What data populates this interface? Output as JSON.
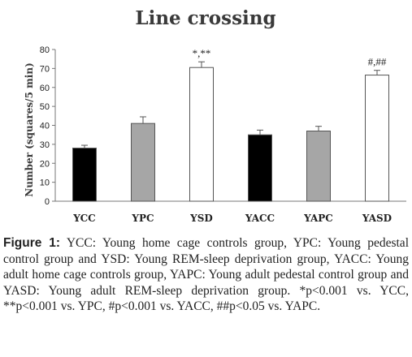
{
  "chart_data": {
    "type": "bar",
    "title": "Line crossing",
    "ylabel": "Number  (squares/5 min)",
    "xlabel": "",
    "ylim": [
      0,
      80
    ],
    "yticks": [
      0,
      10,
      20,
      30,
      40,
      50,
      60,
      70,
      80
    ],
    "categories": [
      "YCC",
      "YPC",
      "YSD",
      "YACC",
      "YAPC",
      "YASD"
    ],
    "values": [
      28,
      41,
      70.5,
      35,
      37,
      66.5
    ],
    "errors": [
      1.5,
      3.5,
      3,
      2.5,
      2.5,
      2.5
    ],
    "annotations": [
      "",
      "",
      "*,**",
      "",
      "",
      "#,##"
    ],
    "bar_colors": [
      "#000000",
      "#a6a6a6",
      "#ffffff",
      "#000000",
      "#a6a6a6",
      "#ffffff"
    ],
    "grid": false
  },
  "caption": {
    "label": "Figure 1:",
    "text": "YCC: Young home cage controls group, YPC: Young pedestal control group and YSD: Young REM-sleep deprivation group, YACC: Young adult home cage controls group, YAPC: Young adult pedestal control group and YASD: Young adult REM-sleep deprivation group. *p<0.001 vs. YCC, **p<0.001 vs. YPC, #p<0.001 vs. YACC, ##p<0.05 vs. YAPC."
  }
}
